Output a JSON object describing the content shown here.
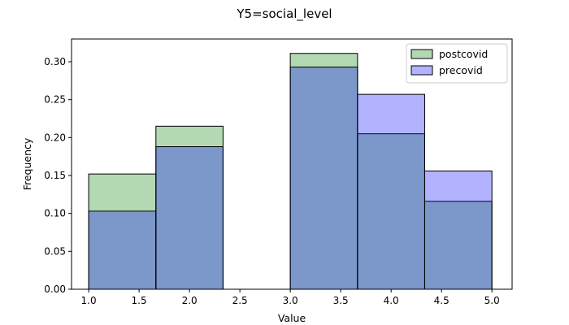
{
  "chart_data": {
    "type": "bar",
    "title": "Y5=social_level",
    "xlabel": "Value",
    "ylabel": "Frequency",
    "xlim": [
      0.83,
      5.2
    ],
    "ylim": [
      0,
      0.33
    ],
    "xticks": [
      "1.0",
      "1.5",
      "2.0",
      "2.5",
      "3.0",
      "3.5",
      "4.0",
      "4.5",
      "5.0"
    ],
    "yticks": [
      "0.00",
      "0.05",
      "0.10",
      "0.15",
      "0.20",
      "0.25",
      "0.30"
    ],
    "bin_edges": [
      1.0,
      1.667,
      2.333,
      3.0,
      3.667,
      4.333,
      5.0
    ],
    "legend_position": "top-right",
    "grid": false,
    "series": [
      {
        "name": "postcovid",
        "color": "#008000",
        "opacity": 0.3,
        "values": [
          0.152,
          0.215,
          0.0,
          0.311,
          0.205,
          0.116
        ]
      },
      {
        "name": "precovid",
        "color": "#0000ff",
        "opacity": 0.3,
        "values": [
          0.103,
          0.188,
          0.0,
          0.293,
          0.257,
          0.156
        ]
      }
    ]
  }
}
